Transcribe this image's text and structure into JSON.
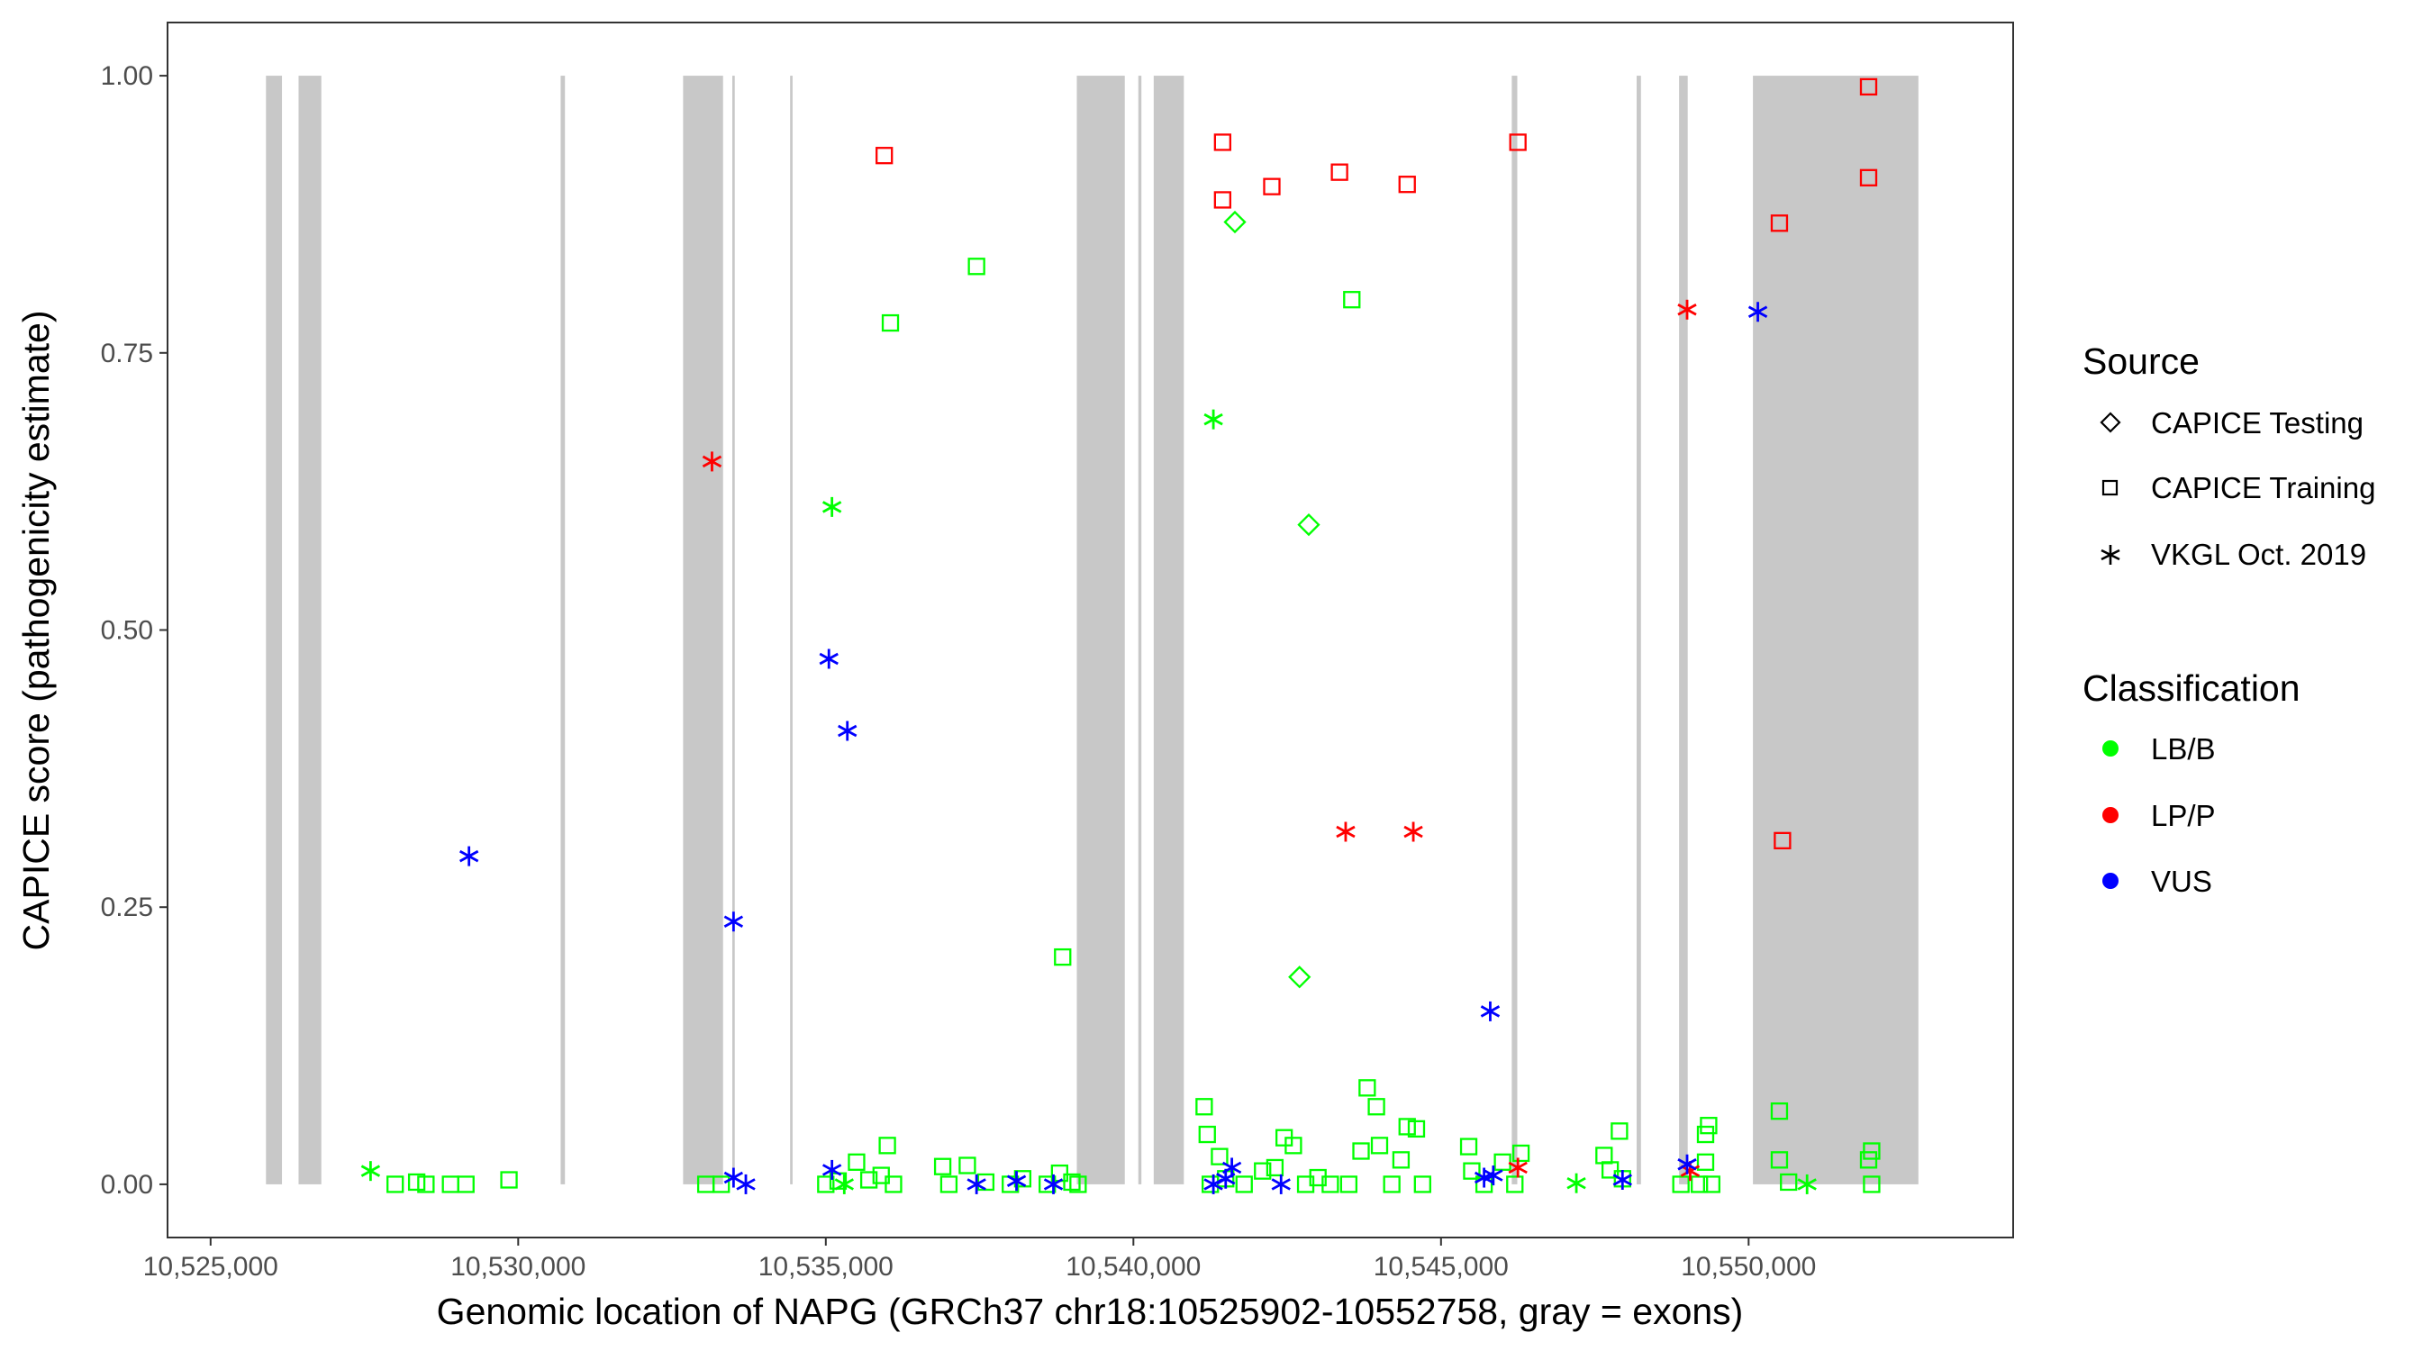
{
  "chart_data": {
    "type": "scatter",
    "title": "",
    "xlabel": "Genomic location of NAPG (GRCh37 chr18:10525902-10552758, gray = exons)",
    "ylabel": "CAPICE score (pathogenicity estimate)",
    "xlim": [
      10524300,
      10554300
    ],
    "ylim": [
      -0.048,
      1.048
    ],
    "xticks": [
      10525000,
      10530000,
      10535000,
      10540000,
      10545000,
      10550000
    ],
    "xtick_labels": [
      "10,525,000",
      "10,530,000",
      "10,535,000",
      "10,540,000",
      "10,545,000",
      "10,550,000"
    ],
    "yticks": [
      0,
      0.25,
      0.5,
      0.75,
      1.0
    ],
    "ytick_labels": [
      "0.00",
      "0.25",
      "0.50",
      "0.75",
      "1.00"
    ],
    "grid": false,
    "exons": [
      [
        10525900,
        10526160
      ],
      [
        10526430,
        10526800
      ],
      [
        10530690,
        10530760
      ],
      [
        10532680,
        10533330
      ],
      [
        10533480,
        10533520
      ],
      [
        10534420,
        10534460
      ],
      [
        10539080,
        10539860
      ],
      [
        10540080,
        10540130
      ],
      [
        10540330,
        10540820
      ],
      [
        10546150,
        10546240
      ],
      [
        10548180,
        10548250
      ],
      [
        10548870,
        10549010
      ],
      [
        10550070,
        10552760
      ]
    ],
    "legend": {
      "placement": "right",
      "source_title": "Source",
      "source_entries": [
        {
          "label": "CAPICE Testing",
          "shape": "diamond"
        },
        {
          "label": "CAPICE Training",
          "shape": "square"
        },
        {
          "label": "VKGL Oct. 2019",
          "shape": "asterisk"
        }
      ],
      "class_title": "Classification",
      "class_entries": [
        {
          "label": "LB/B",
          "color": "#00ff00"
        },
        {
          "label": "LP/P",
          "color": "#ff0000"
        },
        {
          "label": "VUS",
          "color": "#0000ff"
        }
      ]
    },
    "series": [
      {
        "name": "CAPICE Testing",
        "classification": "LB/B",
        "shape": "diamond",
        "color": "#00ff00",
        "points": [
          [
            10541650,
            0.868
          ],
          [
            10542850,
            0.595
          ],
          [
            10542700,
            0.187
          ]
        ]
      },
      {
        "name": "CAPICE Training",
        "classification": "LP/P",
        "shape": "square",
        "color": "#ff0000",
        "points": [
          [
            10535950,
            0.928
          ],
          [
            10541450,
            0.94
          ],
          [
            10541450,
            0.888
          ],
          [
            10542250,
            0.9
          ],
          [
            10543350,
            0.913
          ],
          [
            10544450,
            0.902
          ],
          [
            10546250,
            0.94
          ],
          [
            10551950,
            0.99
          ],
          [
            10551950,
            0.908
          ],
          [
            10550500,
            0.867
          ],
          [
            10550550,
            0.31
          ]
        ]
      },
      {
        "name": "CAPICE Training",
        "classification": "LB/B",
        "shape": "square",
        "color": "#00ff00",
        "points": [
          [
            10537450,
            0.828
          ],
          [
            10536050,
            0.777
          ],
          [
            10543550,
            0.798
          ],
          [
            10538850,
            0.205
          ],
          [
            10528000,
            0.0
          ],
          [
            10528350,
            0.002
          ],
          [
            10528500,
            0.0
          ],
          [
            10528900,
            0.0
          ],
          [
            10529150,
            0.0
          ],
          [
            10529850,
            0.004
          ],
          [
            10533050,
            0.0
          ],
          [
            10533300,
            0.0
          ],
          [
            10535000,
            0.0
          ],
          [
            10535200,
            0.003
          ],
          [
            10535500,
            0.02
          ],
          [
            10535700,
            0.004
          ],
          [
            10535900,
            0.008
          ],
          [
            10536000,
            0.035
          ],
          [
            10536100,
            0.0
          ],
          [
            10536900,
            0.016
          ],
          [
            10537000,
            0.0
          ],
          [
            10537300,
            0.017
          ],
          [
            10537600,
            0.002
          ],
          [
            10538000,
            0.0
          ],
          [
            10538200,
            0.005
          ],
          [
            10538600,
            0.0
          ],
          [
            10538800,
            0.01
          ],
          [
            10539000,
            0.002
          ],
          [
            10539100,
            0.0
          ],
          [
            10541150,
            0.07
          ],
          [
            10541200,
            0.045
          ],
          [
            10541250,
            0.0
          ],
          [
            10541400,
            0.025
          ],
          [
            10541500,
            0.005
          ],
          [
            10541800,
            0.0
          ],
          [
            10542100,
            0.012
          ],
          [
            10542300,
            0.015
          ],
          [
            10542450,
            0.042
          ],
          [
            10542600,
            0.035
          ],
          [
            10542800,
            0.0
          ],
          [
            10543000,
            0.006
          ],
          [
            10543200,
            0.0
          ],
          [
            10543500,
            0.0
          ],
          [
            10543700,
            0.03
          ],
          [
            10543800,
            0.087
          ],
          [
            10543950,
            0.07
          ],
          [
            10544000,
            0.035
          ],
          [
            10544200,
            0.0
          ],
          [
            10544350,
            0.022
          ],
          [
            10544450,
            0.052
          ],
          [
            10544600,
            0.05
          ],
          [
            10544700,
            0.0
          ],
          [
            10545450,
            0.034
          ],
          [
            10545500,
            0.012
          ],
          [
            10545700,
            0.0
          ],
          [
            10546000,
            0.02
          ],
          [
            10546300,
            0.028
          ],
          [
            10546200,
            0.0
          ],
          [
            10547650,
            0.026
          ],
          [
            10547750,
            0.013
          ],
          [
            10547900,
            0.048
          ],
          [
            10547950,
            0.005
          ],
          [
            10548900,
            0.0
          ],
          [
            10549200,
            0.0
          ],
          [
            10549300,
            0.045
          ],
          [
            10549350,
            0.053
          ],
          [
            10549300,
            0.02
          ],
          [
            10549400,
            0.0
          ],
          [
            10550500,
            0.066
          ],
          [
            10550500,
            0.022
          ],
          [
            10550650,
            0.002
          ],
          [
            10551950,
            0.022
          ],
          [
            10552000,
            0.03
          ],
          [
            10552000,
            0.0
          ]
        ]
      },
      {
        "name": "VKGL Oct. 2019",
        "classification": "LP/P",
        "shape": "asterisk",
        "color": "#ff0000",
        "points": [
          [
            10533150,
            0.652
          ],
          [
            10549000,
            0.789
          ],
          [
            10543450,
            0.318
          ],
          [
            10544550,
            0.318
          ],
          [
            10546250,
            0.015
          ],
          [
            10549050,
            0.012
          ]
        ]
      },
      {
        "name": "VKGL Oct. 2019",
        "classification": "LB/B",
        "shape": "asterisk",
        "color": "#00ff00",
        "points": [
          [
            10535100,
            0.611
          ],
          [
            10541300,
            0.69
          ],
          [
            10527600,
            0.012
          ],
          [
            10535300,
            0.0
          ],
          [
            10547200,
            0.001
          ],
          [
            10550950,
            0.0
          ]
        ]
      },
      {
        "name": "VKGL Oct. 2019",
        "classification": "VUS",
        "shape": "asterisk",
        "color": "#0000ff",
        "points": [
          [
            10529200,
            0.296
          ],
          [
            10533500,
            0.237
          ],
          [
            10535050,
            0.474
          ],
          [
            10535350,
            0.409
          ],
          [
            10550150,
            0.787
          ],
          [
            10545800,
            0.156
          ],
          [
            10533500,
            0.006
          ],
          [
            10533700,
            0.0
          ],
          [
            10535100,
            0.013
          ],
          [
            10537450,
            0.0
          ],
          [
            10538100,
            0.003
          ],
          [
            10538700,
            0.0
          ],
          [
            10541300,
            0.0
          ],
          [
            10541500,
            0.005
          ],
          [
            10541600,
            0.015
          ],
          [
            10542400,
            0.0
          ],
          [
            10545700,
            0.006
          ],
          [
            10545850,
            0.008
          ],
          [
            10547950,
            0.004
          ],
          [
            10549000,
            0.018
          ]
        ]
      }
    ]
  }
}
